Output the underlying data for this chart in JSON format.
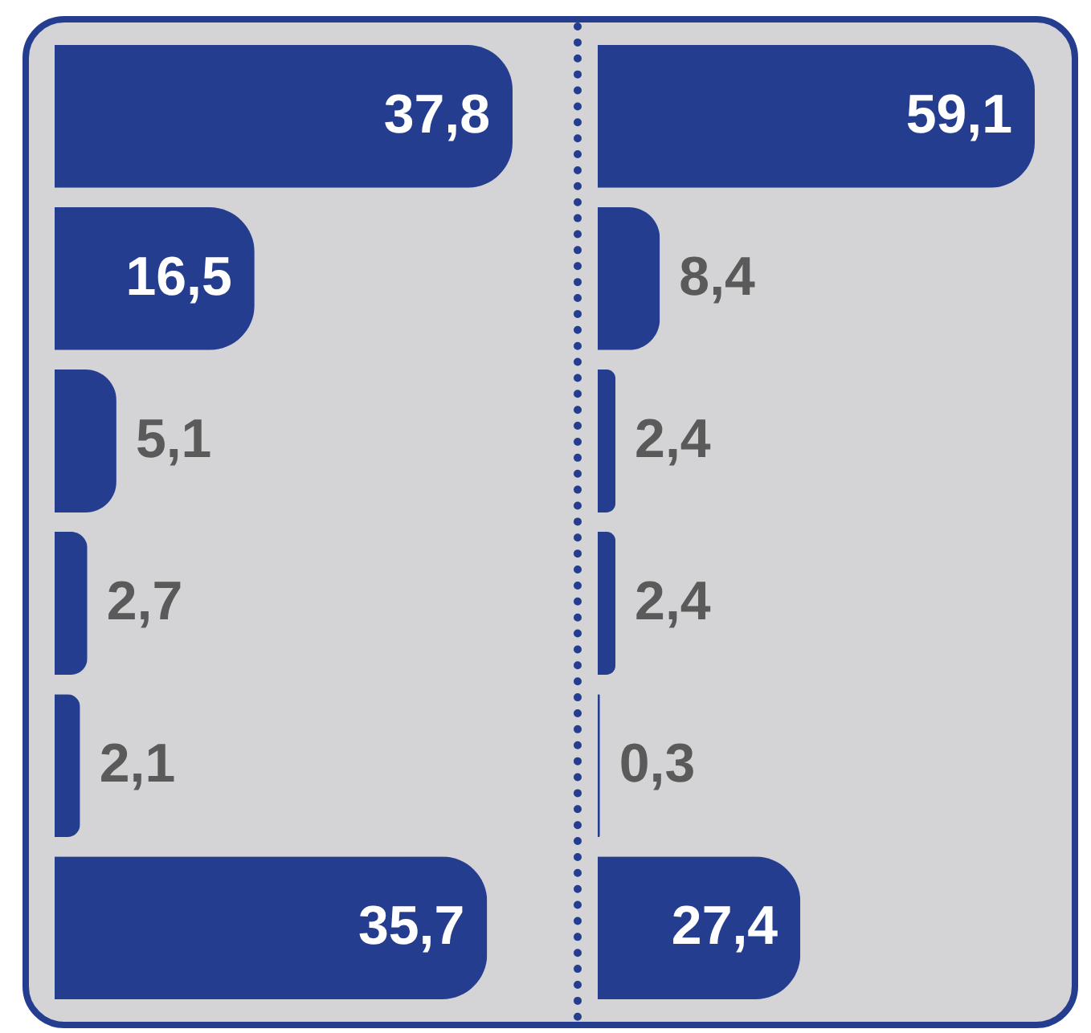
{
  "chart_data": [
    {
      "type": "bar",
      "orientation": "horizontal",
      "categories": [
        null,
        null,
        null,
        null,
        null,
        null
      ],
      "values": [
        37.8,
        16.5,
        5.1,
        2.7,
        2.1,
        35.7
      ],
      "color": "#253d8f",
      "value_labels": [
        "37,8",
        "16,5",
        "5,1",
        "2,7",
        "2,1",
        "35,7"
      ]
    },
    {
      "type": "bar",
      "orientation": "horizontal",
      "categories": [
        null,
        null,
        null,
        null,
        null,
        null
      ],
      "values": [
        59.1,
        8.4,
        2.4,
        2.4,
        0.3,
        27.4
      ],
      "color": "#253d8f",
      "value_labels": [
        "59,1",
        "8,4",
        "2,4",
        "2,4",
        "0,3",
        "27,4"
      ]
    }
  ]
}
